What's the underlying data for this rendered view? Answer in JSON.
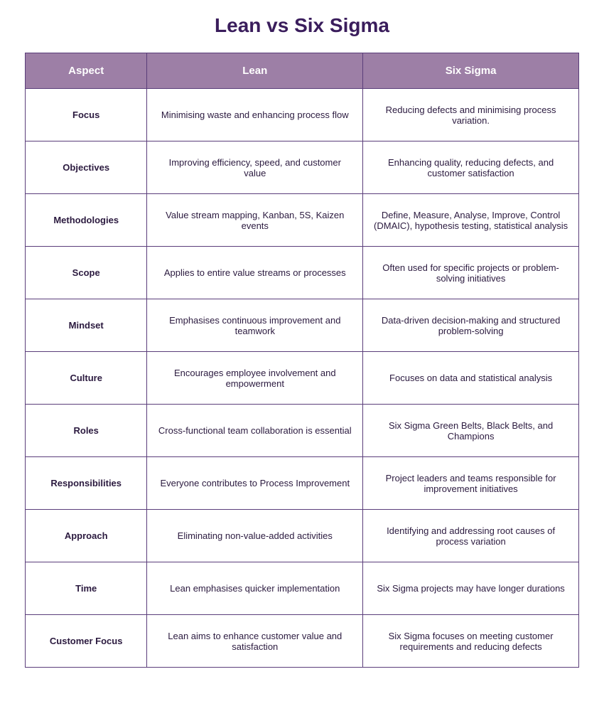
{
  "title": "Lean vs Six Sigma",
  "colors": {
    "header_bg": "#9d7fa6",
    "header_text": "#ffffff",
    "border": "#5a3d7a",
    "title_color": "#3a1d5c",
    "cell_text": "#2b1a3f",
    "page_bg": "#ffffff"
  },
  "columns": [
    "Aspect",
    "Lean",
    "Six Sigma"
  ],
  "rows": [
    {
      "aspect": "Focus",
      "lean": "Minimising waste and enhancing process flow",
      "six_sigma": "Reducing defects and minimising process variation."
    },
    {
      "aspect": "Objectives",
      "lean": "Improving efficiency, speed, and customer value",
      "six_sigma": "Enhancing quality, reducing defects, and customer satisfaction"
    },
    {
      "aspect": "Methodologies",
      "lean": "Value stream mapping, Kanban, 5S, Kaizen events",
      "six_sigma": "Define, Measure, Analyse, Improve, Control (DMAIC), hypothesis testing, statistical analysis"
    },
    {
      "aspect": "Scope",
      "lean": "Applies to entire value streams or processes",
      "six_sigma": "Often used for specific projects or problem-solving initiatives"
    },
    {
      "aspect": "Mindset",
      "lean": "Emphasises continuous improvement and teamwork",
      "six_sigma": "Data-driven decision-making and structured problem-solving"
    },
    {
      "aspect": "Culture",
      "lean": "Encourages employee involvement and empowerment",
      "six_sigma": "Focuses on data and statistical analysis"
    },
    {
      "aspect": "Roles",
      "lean": "Cross-functional team collaboration is essential",
      "six_sigma": "Six Sigma Green Belts, Black Belts, and Champions"
    },
    {
      "aspect": "Responsibilities",
      "lean": "Everyone contributes to Process Improvement",
      "six_sigma": "Project leaders and teams responsible for improvement initiatives"
    },
    {
      "aspect": "Approach",
      "lean": "Eliminating non-value-added activities",
      "six_sigma": "Identifying and addressing root causes of process variation"
    },
    {
      "aspect": "Time",
      "lean": "Lean emphasises quicker implementation",
      "six_sigma": "Six Sigma projects may have longer durations"
    },
    {
      "aspect": "Customer Focus",
      "lean": "Lean aims to enhance customer value and satisfaction",
      "six_sigma": "Six Sigma focuses on meeting customer requirements and reducing defects"
    }
  ]
}
